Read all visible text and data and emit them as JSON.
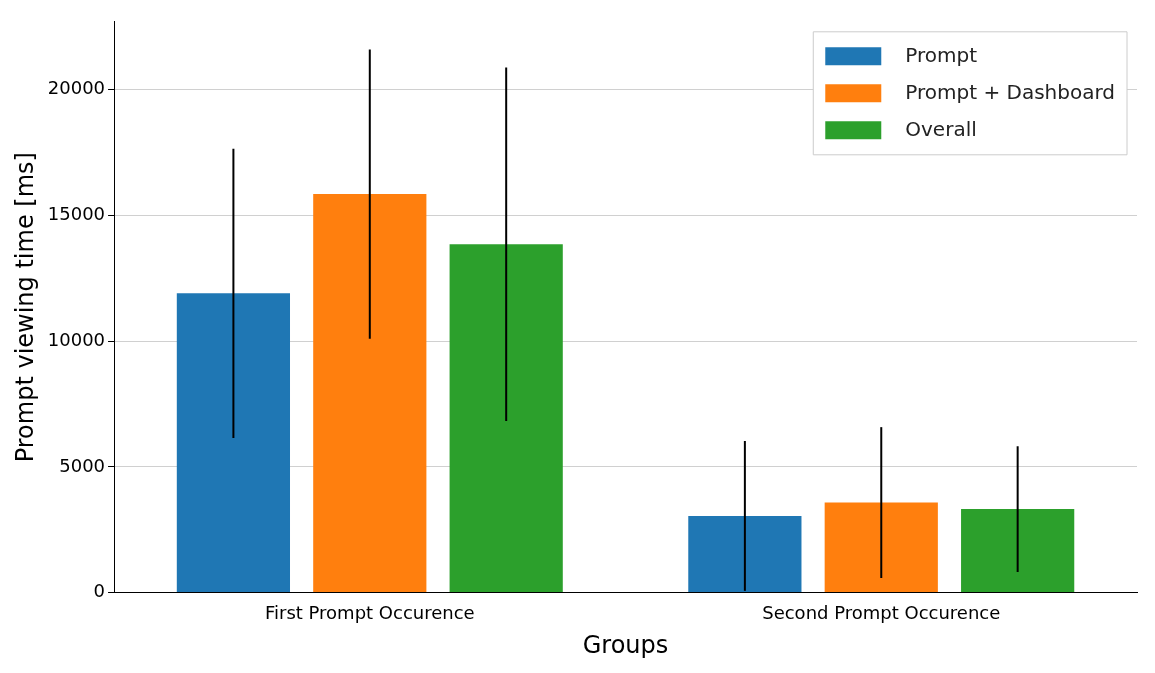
{
  "chart_data": {
    "type": "bar",
    "xlabel": "Groups",
    "ylabel": "Prompt viewing time [ms]",
    "categories": [
      "First Prompt Occurence",
      "Second Prompt Occurence"
    ],
    "series": [
      {
        "name": "Prompt",
        "color": "#1f77b4",
        "values": [
          11900,
          3050
        ],
        "errors": [
          5750,
          2980
        ]
      },
      {
        "name": "Prompt + Dashboard",
        "color": "#ff7f0e",
        "values": [
          15850,
          3580
        ],
        "errors": [
          5750,
          3000
        ]
      },
      {
        "name": "Overall",
        "color": "#2ca02c",
        "values": [
          13850,
          3320
        ],
        "errors": [
          7030,
          2500
        ]
      }
    ],
    "ylim": [
      0,
      22700
    ],
    "yticks": [
      0,
      5000,
      10000,
      15000,
      20000
    ],
    "grid": "y",
    "legend": "top right"
  }
}
